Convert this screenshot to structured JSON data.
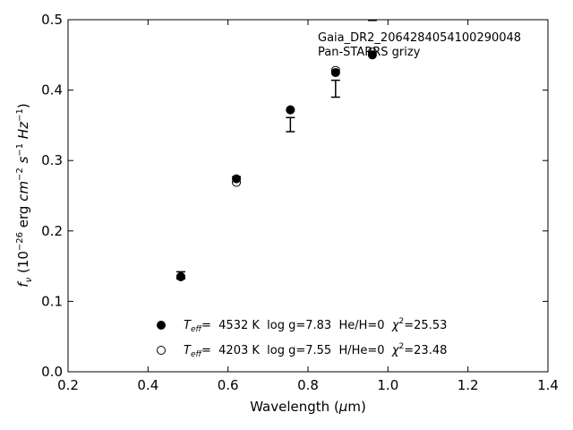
{
  "chart_data": {
    "type": "scatter",
    "title_lines": [
      "Gaia_DR2_2064284054100290048",
      "Pan-STARRS grizy"
    ],
    "xlabel": {
      "text": "Wavelength (",
      "sym": "μ",
      "tail": "m)"
    },
    "ylabel": {
      "f": "f",
      "sub": "ν",
      "open": " (10",
      "exp1": "−26",
      "mid": " erg ",
      "cm": "cm",
      "exp2": "−2",
      "s": " s",
      "exp3": "−1",
      "hz": " Hz",
      "exp4": "−1",
      "close": ")"
    },
    "xlim": [
      0.2,
      1.4
    ],
    "ylim": [
      0.0,
      0.5
    ],
    "xticks": [
      0.2,
      0.4,
      0.6,
      0.8,
      1.0,
      1.2,
      1.4
    ],
    "yticks": [
      0.0,
      0.1,
      0.2,
      0.3,
      0.4,
      0.5
    ],
    "observed": {
      "x": [
        0.482,
        0.621,
        0.756,
        0.869,
        0.961
      ],
      "y": [
        0.137,
        0.273,
        0.351,
        0.402,
        0.505
      ],
      "yerr": [
        0.005,
        0.004,
        0.01,
        0.012,
        0.006
      ]
    },
    "series": [
      {
        "marker": "filled",
        "x": [
          0.482,
          0.621,
          0.756,
          0.869,
          0.961
        ],
        "y": [
          0.135,
          0.274,
          0.372,
          0.425,
          0.45
        ],
        "legend": {
          "T": "T",
          "sub": "eff",
          "text": "=  4532 K  log g=7.83  He/H=0  ",
          "chi": "χ",
          "sup": "2",
          "val": "=25.53"
        }
      },
      {
        "marker": "open",
        "x": [
          0.482,
          0.621,
          0.756,
          0.869,
          0.961
        ],
        "y": [
          0.135,
          0.269,
          0.372,
          0.428,
          0.454
        ],
        "legend": {
          "T": "T",
          "sub": "eff",
          "text": "=  4203 K  log g=7.55  H/He=0  ",
          "chi": "χ",
          "sup": "2",
          "val": "=23.48"
        }
      }
    ]
  }
}
